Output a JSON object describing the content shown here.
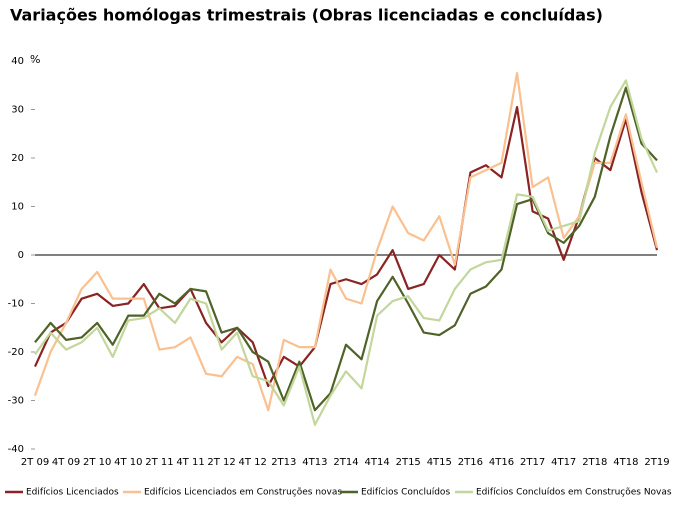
{
  "chart_data": {
    "type": "line",
    "title": "Variações homólogas trimestrais (Obras licenciadas e concluídas)",
    "ylabel": "%",
    "categories": [
      "2T 09",
      null,
      "4T 09",
      null,
      "2T 10",
      null,
      "4T 10",
      null,
      "2T 11",
      null,
      "4T 11",
      null,
      "2T 12",
      null,
      "4T 12",
      null,
      "2T13",
      null,
      "4T13",
      null,
      "2T14",
      null,
      "4T14",
      null,
      "2T15",
      null,
      "4T15",
      null,
      "2T16",
      null,
      "4T16",
      null,
      "2T17",
      null,
      "4T17",
      null,
      "2T18",
      null,
      "4T18",
      null,
      "2T19"
    ],
    "series": [
      {
        "name": "Edifícios Licenciados",
        "color": "#8b2323",
        "values": [
          -23,
          -16,
          -14,
          -9,
          -8,
          -10.5,
          -10,
          -6,
          -11,
          -10.5,
          -7,
          -14,
          -18,
          -15,
          -18,
          -27,
          -21,
          -23,
          -19,
          -6,
          -5,
          -6,
          -4,
          1,
          -7,
          -6,
          0,
          -3,
          17,
          18.5,
          16,
          30.5,
          9,
          7.5,
          -1,
          8,
          20,
          17.5,
          28,
          13,
          1
        ]
      },
      {
        "name": "Edifícios Licenciados em Construções novas",
        "color": "#fac090",
        "values": [
          -29,
          -20,
          -14,
          -7,
          -3.5,
          -9,
          -9,
          -9,
          -19.5,
          -19,
          -17,
          -24.5,
          -25,
          -21,
          -22.5,
          -32,
          -17.5,
          -19,
          -19,
          -3,
          -9,
          -10,
          1,
          10,
          4.5,
          3,
          8,
          -2,
          16,
          17.5,
          19,
          37.5,
          14,
          16,
          3.5,
          8,
          19,
          19,
          29,
          15,
          1.5
        ]
      },
      {
        "name": "Edifícios Concluídos",
        "color": "#4f6228",
        "values": [
          -18,
          -14,
          -17.5,
          -17,
          -14,
          -18.5,
          -12.5,
          -12.5,
          -8,
          -10,
          -7,
          -7.5,
          -16,
          -15,
          -20,
          -22,
          -30,
          -22,
          -32,
          -28.5,
          -18.5,
          -21.5,
          -9.5,
          -4.5,
          -10,
          -16,
          -16.5,
          -14.5,
          -8,
          -6.5,
          -3,
          10.5,
          11.5,
          4.5,
          2.5,
          6,
          12,
          24.5,
          34.5,
          23,
          19.5
        ]
      },
      {
        "name": "Edifícios Concluídos em Construções Novas",
        "color": "#c3d69b",
        "values": [
          -20.5,
          -16,
          -19.5,
          -18,
          -15,
          -21,
          -13.5,
          -13,
          -11,
          -14,
          -9,
          -10,
          -19.5,
          -16,
          -25,
          -26,
          -31,
          -23,
          -35,
          -29,
          -24,
          -27.5,
          -12.5,
          -9.5,
          -8.5,
          -13,
          -13.5,
          -7,
          -3,
          -1.5,
          -1,
          12.5,
          12,
          5,
          6,
          7,
          21,
          30.5,
          36,
          24,
          17
        ]
      }
    ],
    "ylim": [
      -40,
      40
    ],
    "yticks": [
      -40,
      -30,
      -20,
      -10,
      0,
      10,
      20,
      30,
      40
    ]
  }
}
